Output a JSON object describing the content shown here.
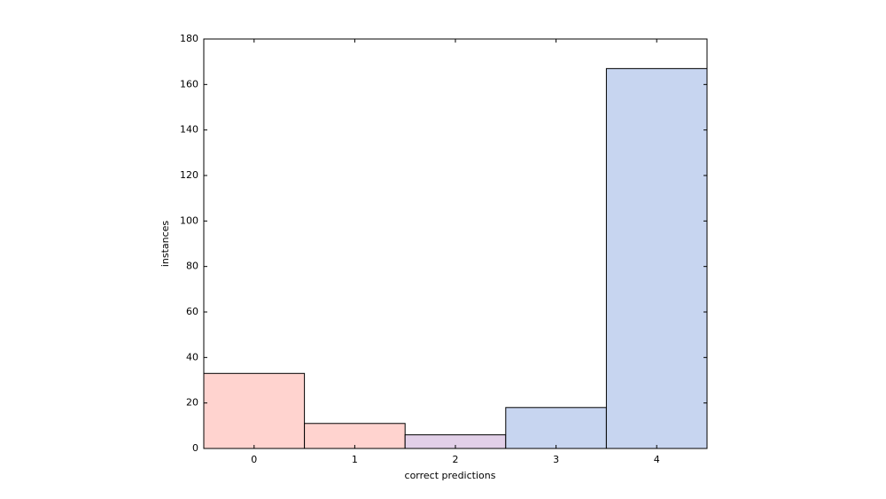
{
  "chart_data": {
    "type": "bar",
    "categories": [
      "0",
      "1",
      "2",
      "3",
      "4"
    ],
    "values": [
      33,
      11,
      6,
      18,
      167
    ],
    "colors": [
      "#ffd3cf",
      "#ffd3cf",
      "#e2d0e8",
      "#c7d5f0",
      "#c7d5f0"
    ],
    "x_label": "correct predictions",
    "y_label": "instances",
    "ylim": [
      0,
      180
    ],
    "yticks": [
      0,
      20,
      40,
      60,
      80,
      100,
      120,
      140,
      160,
      180
    ],
    "grid": false
  }
}
